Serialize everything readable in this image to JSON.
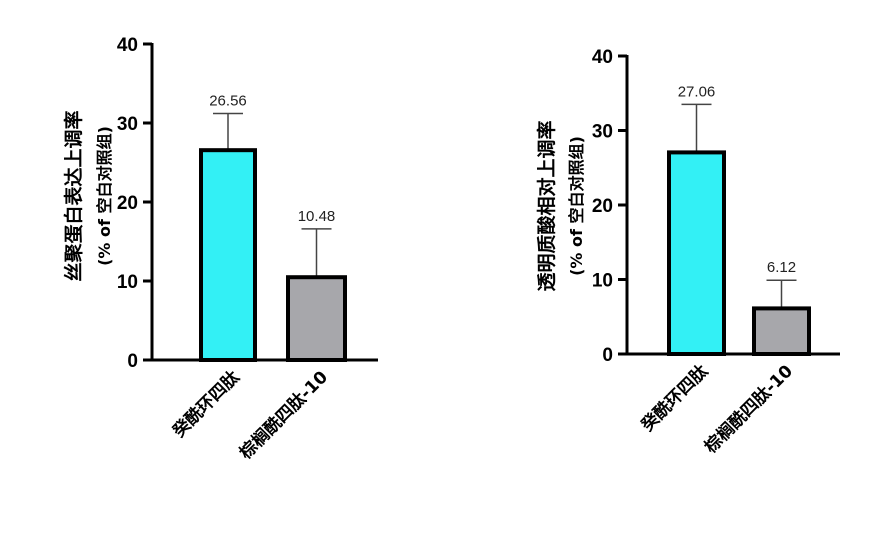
{
  "chart_data": [
    {
      "type": "bar",
      "title": "",
      "ylabel": "丝聚蛋白表达上调率",
      "ylabel_sub": "(% of 空白对照组)",
      "ylim": [
        0,
        40
      ],
      "yticks": [
        0,
        10,
        20,
        30,
        40
      ],
      "categories": [
        "癸酰环四肽",
        "棕榈酰四肽-10"
      ],
      "values": [
        26.56,
        10.48
      ],
      "value_labels": [
        "26.56",
        "10.48"
      ],
      "error_upper": [
        31.2,
        16.6
      ],
      "bar_colors": [
        "#33f0f5",
        "#a7a7ab"
      ],
      "grid": false,
      "legend": "none"
    },
    {
      "type": "bar",
      "title": "",
      "ylabel": "透明质酸相对上调率",
      "ylabel_sub": "(% of 空白对照组)",
      "ylim": [
        0,
        40
      ],
      "yticks": [
        0,
        10,
        20,
        30,
        40
      ],
      "categories": [
        "癸酰环四肽",
        "棕榈酰四肽-10"
      ],
      "values": [
        27.06,
        6.12
      ],
      "value_labels": [
        "27.06",
        "6.12"
      ],
      "error_upper": [
        33.5,
        9.9
      ],
      "bar_colors": [
        "#33f0f5",
        "#a7a7ab"
      ],
      "grid": false,
      "legend": "none"
    }
  ]
}
